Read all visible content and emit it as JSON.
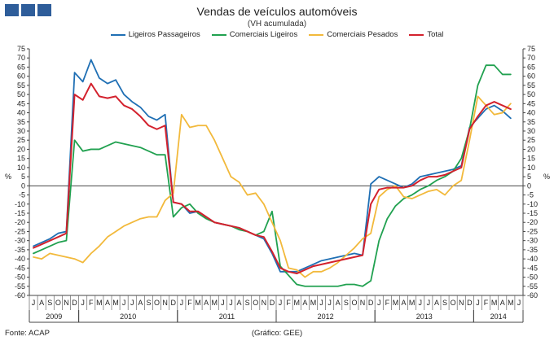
{
  "header": {
    "title": "Vendas de veículos automóveis",
    "subtitle": "(VH acumulada)"
  },
  "footer": {
    "source": "Fonte: ACAP",
    "credit": "(Gráfico: GEE)"
  },
  "colors": {
    "corner_blocks": "#2e5d9a"
  },
  "chart_data": {
    "type": "line",
    "ylim": [
      -60,
      75
    ],
    "yticks": [
      -60,
      -55,
      -50,
      -45,
      -40,
      -35,
      -30,
      -25,
      -20,
      -15,
      -10,
      -5,
      0,
      5,
      10,
      15,
      20,
      25,
      30,
      35,
      40,
      45,
      50,
      55,
      60,
      65,
      70,
      75
    ],
    "ylabel_left": "%",
    "ylabel_right": "%",
    "grid": false,
    "legend_position": "top",
    "month_labels": [
      "J",
      "A",
      "S",
      "O",
      "N",
      "D",
      "J",
      "F",
      "M",
      "A",
      "M",
      "J",
      "J",
      "A",
      "S",
      "O",
      "N",
      "D",
      "J",
      "F",
      "M",
      "A",
      "M",
      "J",
      "J",
      "A",
      "S",
      "O",
      "N",
      "D",
      "J",
      "F",
      "M",
      "A",
      "M",
      "J",
      "J",
      "A",
      "S",
      "O",
      "N",
      "D",
      "J",
      "F",
      "M",
      "A",
      "M",
      "J",
      "J",
      "A",
      "S",
      "O",
      "N",
      "D",
      "J",
      "F",
      "M",
      "A",
      "M",
      "J"
    ],
    "years": [
      {
        "label": "2009",
        "start": 0,
        "end": 5
      },
      {
        "label": "2010",
        "start": 6,
        "end": 17
      },
      {
        "label": "2011",
        "start": 18,
        "end": 29
      },
      {
        "label": "2012",
        "start": 30,
        "end": 41
      },
      {
        "label": "2013",
        "start": 42,
        "end": 53
      },
      {
        "label": "2014",
        "start": 54,
        "end": 59
      }
    ],
    "series": [
      {
        "name": "Ligeiros Passageiros",
        "color": "#1f6fb4",
        "values": [
          -33,
          -31,
          -29,
          -26,
          -25,
          62,
          57,
          69,
          59,
          56,
          58,
          50,
          46,
          43,
          38,
          36,
          39,
          -9,
          -10,
          -15,
          -14,
          -17,
          -20,
          -21,
          -22,
          -23,
          -25,
          -27,
          -29,
          -37,
          -47,
          -47,
          -47,
          -45,
          -43,
          -41,
          -40,
          -39,
          -38,
          -37,
          -38,
          1,
          5,
          3,
          1,
          -1,
          1,
          5,
          6,
          7,
          8,
          9,
          11,
          32,
          37,
          42,
          44,
          41,
          37,
          null
        ]
      },
      {
        "name": "Comerciais Ligeiros",
        "color": "#21a150",
        "values": [
          -37,
          -35,
          -33,
          -31,
          -30,
          25,
          19,
          20,
          20,
          22,
          24,
          23,
          22,
          21,
          19,
          17,
          17,
          -17,
          -12,
          -10,
          -15,
          -18,
          -20,
          -21,
          -22,
          -24,
          -25,
          -27,
          -25,
          -14,
          -44,
          -49,
          -54,
          -55,
          -55,
          -55,
          -55,
          -55,
          -54,
          -54,
          -55,
          -52,
          -30,
          -18,
          -11,
          -7,
          -5,
          -2,
          0,
          3,
          5,
          8,
          15,
          31,
          55,
          66,
          66,
          61,
          61,
          null
        ]
      },
      {
        "name": "Comerciais Pesados",
        "color": "#f2b93b",
        "values": [
          -39,
          -40,
          -37,
          -38,
          -39,
          -40,
          -42,
          -37,
          -33,
          -28,
          -25,
          -22,
          -20,
          -18,
          -17,
          -17,
          -8,
          -4,
          39,
          32,
          33,
          33,
          25,
          15,
          5,
          2,
          -5,
          -4,
          -10,
          -20,
          -30,
          -45,
          -46,
          -50,
          -47,
          -47,
          -45,
          -42,
          -38,
          -34,
          -29,
          -26,
          -6,
          -2,
          0,
          -6,
          -7,
          -5,
          -3,
          -2,
          -5,
          0,
          3,
          25,
          49,
          44,
          39,
          40,
          45,
          null
        ]
      },
      {
        "name": "Total",
        "color": "#d3212d",
        "values": [
          -34,
          -32,
          -30,
          -28,
          -26,
          50,
          47,
          56,
          49,
          48,
          49,
          44,
          42,
          38,
          33,
          31,
          33,
          -9,
          -10,
          -14,
          -14,
          -17,
          -20,
          -21,
          -22,
          -23,
          -25,
          -27,
          -28,
          -36,
          -45,
          -47,
          -48,
          -46,
          -44,
          -43,
          -42,
          -41,
          -40,
          -39,
          -38,
          -10,
          -2,
          -1,
          -1,
          -1,
          0,
          3,
          5,
          5,
          6,
          8,
          10,
          31,
          38,
          44,
          46,
          44,
          42,
          null
        ]
      }
    ]
  }
}
